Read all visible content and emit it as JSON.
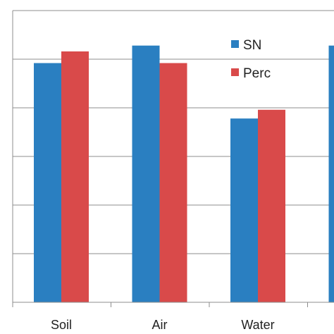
{
  "chart_data": {
    "type": "bar",
    "categories": [
      "Soil",
      "Air",
      "Water",
      ""
    ],
    "series": [
      {
        "name": "SN",
        "color": "#2a7fc1",
        "values": [
          0.82,
          0.88,
          0.63,
          0.88
        ]
      },
      {
        "name": "Perc",
        "color": "#d94a4a",
        "values": [
          0.86,
          0.82,
          0.66,
          null
        ]
      }
    ],
    "ylim": [
      0,
      1
    ],
    "grid": true,
    "legend_position": "top-right"
  }
}
